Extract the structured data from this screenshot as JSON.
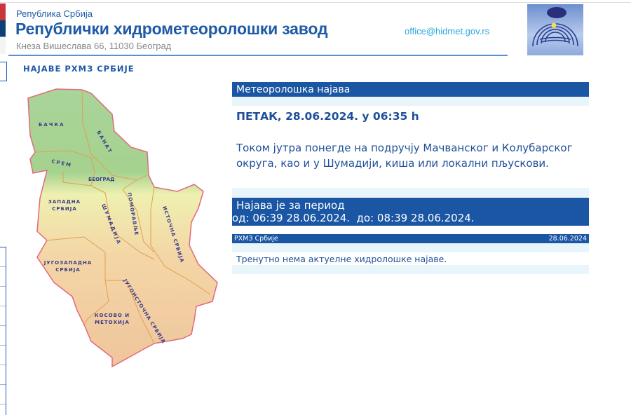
{
  "header": {
    "country": "Република Србија",
    "institution": "Републички хидрометеоролошки завод",
    "address": "Кнеза Вишеслава 66, 11030  Београд",
    "email": "office@hidmet.gov.rs",
    "logo_text": "РХМЗ Србије"
  },
  "section_title": "НАЈАВЕ РХМЗ СРБИЈЕ",
  "map": {
    "regions": [
      "БАЧКА",
      "БАНАТ",
      "СРЕМ",
      "БЕОГРАД",
      "ЗАПАДНА СРБИЈА",
      "ШУМАДИЈА",
      "ПОМОРАВЉЕ",
      "ИСТОЧНА СРБИЈА",
      "ЈУГОЗАПАДНА СРБИЈА",
      "ЈУГОИСТОЧНА СРБИЈА",
      "КОСОВО И МЕТОХИЈА"
    ]
  },
  "forecast": {
    "title": "Метеоролошка најава",
    "date": "ПЕТАК, 28.06.2024. у 06:35 h",
    "text": "Током јутра понегде на подручју Мачванског и Колубарског округа, као и у Шумадији, киша или локални пљускови.",
    "period_label": "Најава је за период",
    "period": "од: 06:39 28.06.2024.  до: 08:39 28.06.2024.",
    "source": "РХМЗ Србије",
    "source_date": "28.06.2024"
  },
  "hydro": {
    "text": "Тренутно нема актуелне хидролошке најаве."
  },
  "colors": {
    "accent": "#1a56a3",
    "light": "#e8f5fb",
    "link": "#29a8e0"
  }
}
